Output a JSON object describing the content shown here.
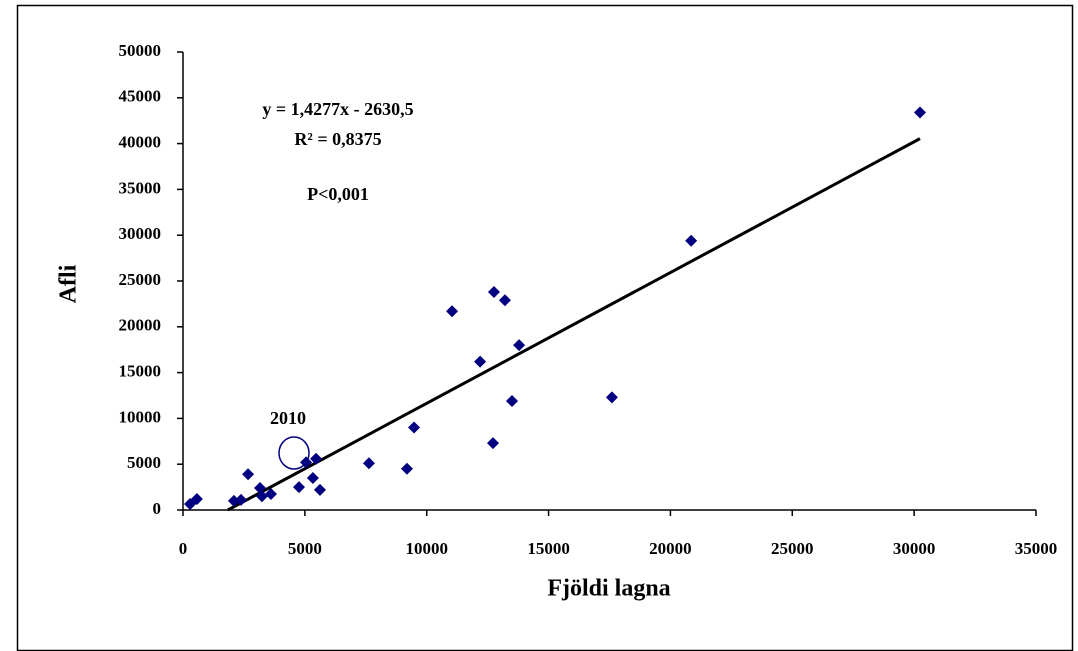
{
  "chart_data": {
    "type": "scatter",
    "x_label": "Fjöldi lagna",
    "y_label": "Afli",
    "annotations": [
      "y = 1,4277x - 2630,5",
      "R² = 0,8375",
      "P<0,001",
      "2010"
    ],
    "x": [
      290,
      570,
      2090,
      2380,
      2670,
      3160,
      3240,
      3610,
      4760,
      5050,
      5330,
      5460,
      5620,
      7630,
      9190,
      9480,
      11040,
      12190,
      12720,
      12760,
      13210,
      13500,
      13790,
      17600,
      20850,
      30240
    ],
    "series": [
      {
        "color": "#000080",
        "values": [
          650,
          1200,
          1000,
          1100,
          3900,
          2400,
          1500,
          1750,
          2500,
          5200,
          3500,
          5600,
          2200,
          5100,
          4500,
          9000,
          21700,
          16200,
          7300,
          23800,
          22900,
          11900,
          18000,
          12300,
          29400,
          43400
        ]
      }
    ],
    "trendline": {
      "color": "#000000",
      "x": [
        1842,
        30240
      ],
      "values": [
        0,
        40543
      ]
    },
    "xlim": [
      0,
      35000
    ],
    "xticks": [
      0,
      5000,
      10000,
      15000,
      20000,
      25000,
      30000,
      35000
    ],
    "ylim": [
      0,
      50000
    ],
    "yticks": [
      0,
      5000,
      10000,
      15000,
      20000,
      25000,
      30000,
      35000,
      40000,
      45000,
      50000
    ],
    "grid": false
  }
}
